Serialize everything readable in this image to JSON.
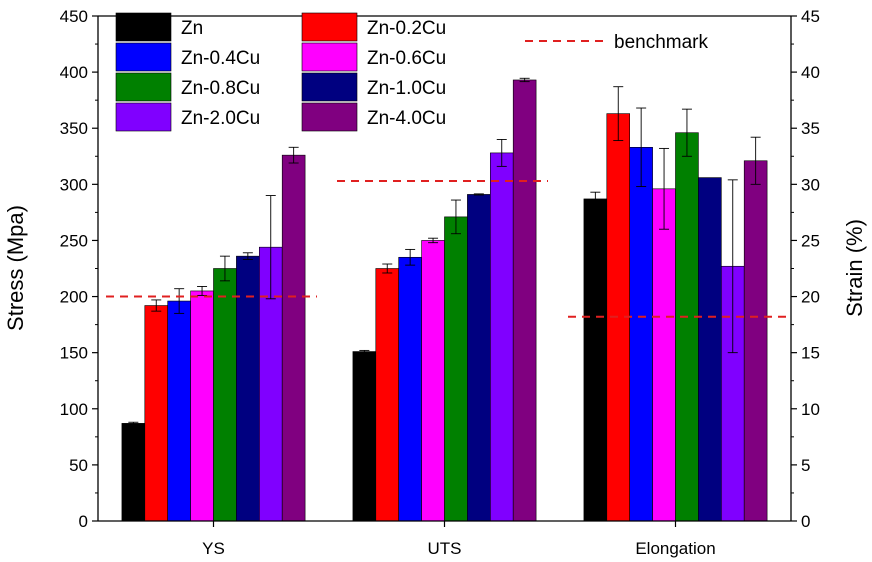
{
  "chart_data": {
    "type": "bar",
    "categories": [
      "YS",
      "UTS",
      "Elongation"
    ],
    "y_left_label": "Stress (Mpa)",
    "y_right_label": "Strain (%)",
    "y_left_lim": [
      0,
      450
    ],
    "y_right_lim": [
      0,
      45
    ],
    "y_left_ticks": [
      "0",
      "50",
      "100",
      "150",
      "200",
      "250",
      "300",
      "350",
      "400",
      "450"
    ],
    "y_right_ticks": [
      "0",
      "5",
      "10",
      "15",
      "20",
      "25",
      "30",
      "35",
      "40",
      "45"
    ],
    "grid": false,
    "legend_position": "top-left",
    "colors": {
      "Zn": "#000000",
      "Zn-0.2Cu": "#ff0000",
      "Zn-0.4Cu": "#0000ff",
      "Zn-0.6Cu": "#ff00ff",
      "Zn-0.8Cu": "#008000",
      "Zn-1.0Cu": "#000080",
      "Zn-2.0Cu": "#8000ff",
      "Zn-4.0Cu": "#800080",
      "benchmark": "#e02020"
    },
    "series": [
      {
        "name": "Zn",
        "values": [
          87,
          151,
          28.7
        ],
        "errors": [
          1,
          1,
          0.6
        ]
      },
      {
        "name": "Zn-0.2Cu",
        "values": [
          192,
          225,
          36.3
        ],
        "errors": [
          5,
          4,
          2.4
        ]
      },
      {
        "name": "Zn-0.4Cu",
        "values": [
          196,
          235,
          33.3
        ],
        "errors": [
          11,
          7,
          3.5
        ]
      },
      {
        "name": "Zn-0.6Cu",
        "values": [
          205,
          250,
          29.6
        ],
        "errors": [
          4,
          2,
          3.6
        ]
      },
      {
        "name": "Zn-0.8Cu",
        "values": [
          225,
          271,
          34.6
        ],
        "errors": [
          11,
          15,
          2.1
        ]
      },
      {
        "name": "Zn-1.0Cu",
        "values": [
          236,
          291,
          30.6
        ],
        "errors": [
          3,
          0.5,
          0
        ]
      },
      {
        "name": "Zn-2.0Cu",
        "values": [
          244,
          328,
          22.7
        ],
        "errors": [
          46,
          12,
          7.7
        ]
      },
      {
        "name": "Zn-4.0Cu",
        "values": [
          326,
          393,
          32.1
        ],
        "errors": [
          7,
          1.5,
          2.1
        ]
      }
    ],
    "value_axis": [
      "left",
      "left",
      "right"
    ],
    "benchmark": {
      "label": "benchmark",
      "values": [
        200,
        303,
        18.2
      ],
      "axis": [
        "left",
        "left",
        "right"
      ]
    }
  }
}
